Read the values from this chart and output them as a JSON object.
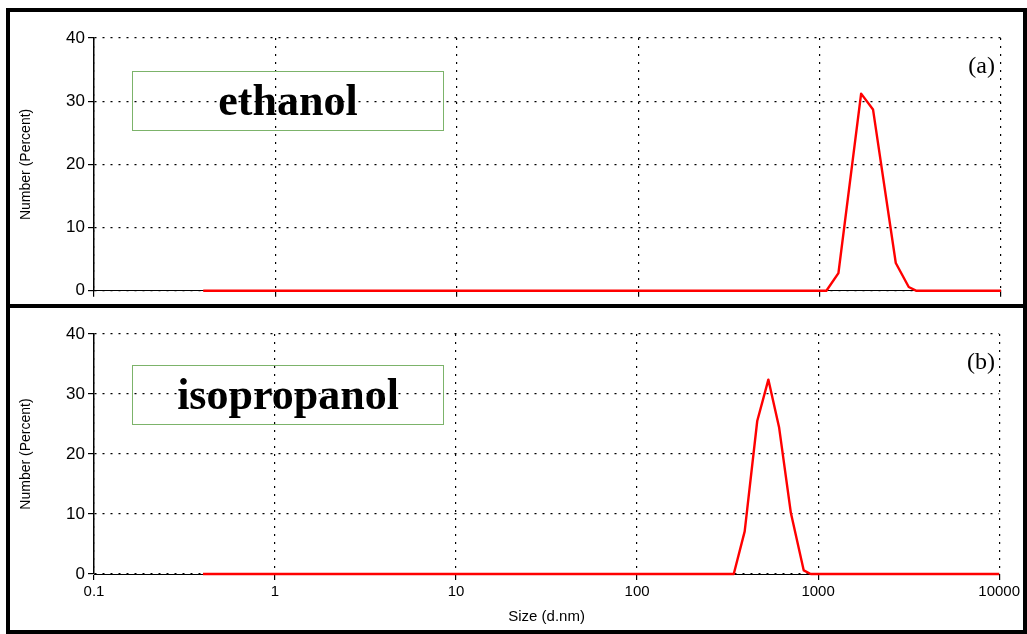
{
  "chart_data": [
    {
      "type": "line",
      "ylabel": "Number (Percent)",
      "annotations": [
        "ethanol",
        "(a)"
      ],
      "log": "x",
      "xlim": [
        0.1,
        10000
      ],
      "xticks": [
        0.1,
        1,
        10,
        100,
        1000,
        10000
      ],
      "ylim": [
        0,
        40
      ],
      "yticks": [
        0,
        10,
        20,
        30,
        40
      ],
      "grid": true,
      "tick_labels": "y",
      "marker": "none",
      "line_style": "solid",
      "series": [
        {
          "color": "#ff0000",
          "x": [
            0.4,
            1090,
            1270,
            1694,
            1970,
            2630,
            3100,
            3420,
            10000
          ],
          "values": [
            0,
            0,
            2.8,
            31.2,
            28.7,
            4.4,
            0.6,
            0,
            0
          ]
        }
      ]
    },
    {
      "type": "line",
      "xlabel": "Size (d.nm)",
      "ylabel": "Number (Percent)",
      "annotations": [
        "isopropanol",
        "(b)"
      ],
      "log": "x",
      "xlim": [
        0.1,
        10000
      ],
      "xticks": [
        0.1,
        1,
        10,
        100,
        1000,
        10000
      ],
      "ylim": [
        0,
        40
      ],
      "yticks": [
        0,
        10,
        20,
        30,
        40
      ],
      "grid": true,
      "marker": "none",
      "line_style": "solid",
      "series": [
        {
          "color": "#ff0000",
          "x": [
            0.4,
            342,
            393,
            461,
            531,
            609,
            707,
            833,
            910,
            10000
          ],
          "values": [
            0,
            0,
            7.1,
            25.5,
            32.4,
            24.4,
            10.2,
            0.6,
            0,
            0
          ]
        }
      ]
    }
  ]
}
